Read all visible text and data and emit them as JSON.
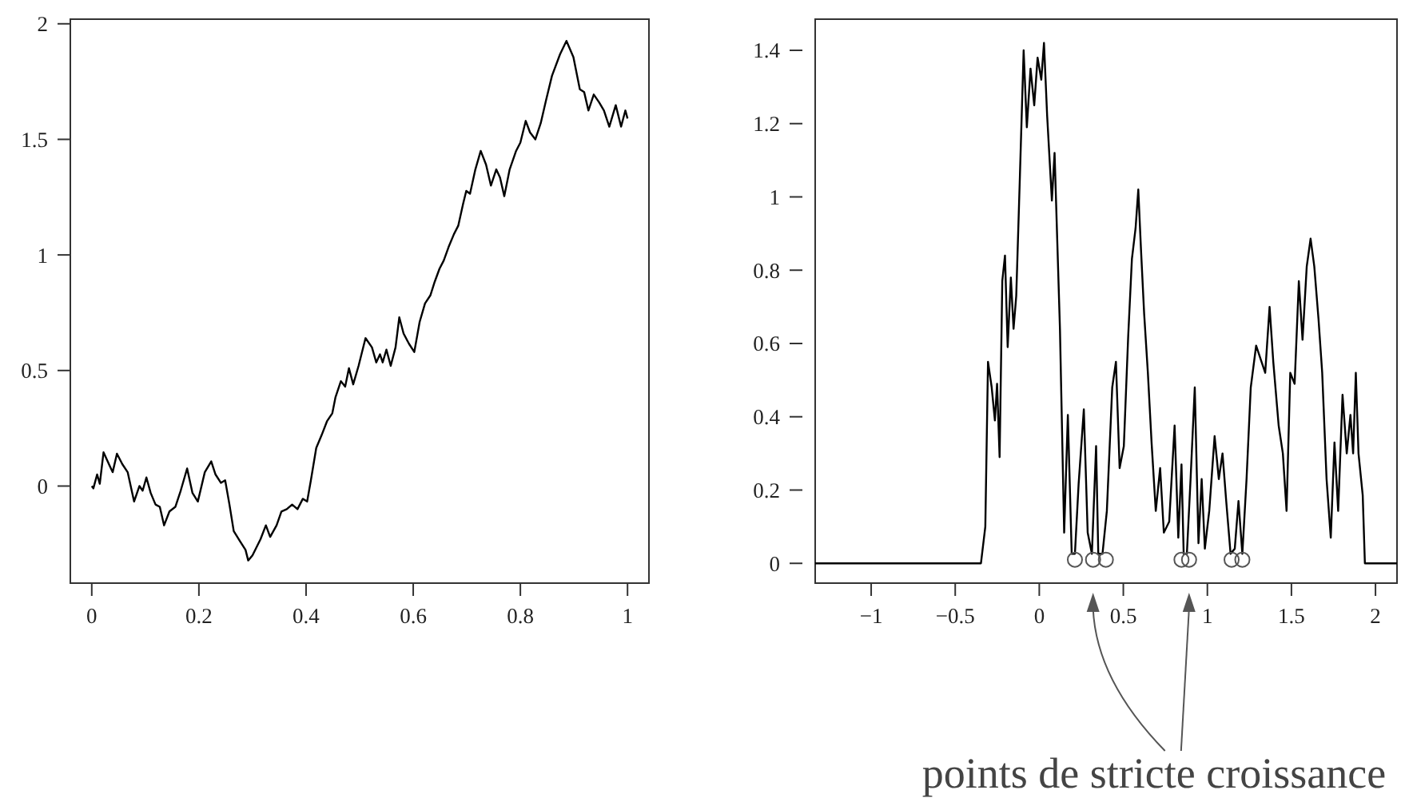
{
  "chart_data": [
    {
      "type": "line",
      "x": [
        0,
        0.003,
        0.01,
        0.015,
        0.022,
        0.032,
        0.039,
        0.047,
        0.057,
        0.067,
        0.079,
        0.089,
        0.095,
        0.102,
        0.11,
        0.119,
        0.127,
        0.135,
        0.145,
        0.156,
        0.166,
        0.178,
        0.188,
        0.198,
        0.211,
        0.223,
        0.231,
        0.241,
        0.249,
        0.257,
        0.265,
        0.277,
        0.287,
        0.292,
        0.3,
        0.315,
        0.325,
        0.333,
        0.345,
        0.354,
        0.364,
        0.374,
        0.384,
        0.394,
        0.402,
        0.409,
        0.419,
        0.429,
        0.439,
        0.449,
        0.455,
        0.465,
        0.473,
        0.48,
        0.488,
        0.498,
        0.511,
        0.523,
        0.531,
        0.538,
        0.543,
        0.55,
        0.558,
        0.567,
        0.574,
        0.582,
        0.592,
        0.602,
        0.612,
        0.622,
        0.632,
        0.64,
        0.649,
        0.657,
        0.666,
        0.676,
        0.684,
        0.693,
        0.699,
        0.706,
        0.716,
        0.726,
        0.736,
        0.745,
        0.755,
        0.762,
        0.77,
        0.78,
        0.792,
        0.8,
        0.81,
        0.818,
        0.828,
        0.838,
        0.848,
        0.859,
        0.874,
        0.886,
        0.899,
        0.911,
        0.919,
        0.927,
        0.937,
        0.947,
        0.956,
        0.966,
        0.978,
        0.988,
        0.996,
        1.0
      ],
      "series": [
        {
          "color": "#000000",
          "values": [
            0,
            -0.01,
            0.05,
            0.01,
            0.146,
            0.095,
            0.06,
            0.14,
            0.095,
            0.06,
            -0.067,
            0,
            -0.02,
            0.037,
            -0.03,
            -0.08,
            -0.09,
            -0.17,
            -0.11,
            -0.09,
            -0.02,
            0.076,
            -0.03,
            -0.067,
            0.06,
            0.107,
            0.05,
            0.014,
            0.025,
            -0.08,
            -0.195,
            -0.24,
            -0.276,
            -0.322,
            -0.3,
            -0.23,
            -0.17,
            -0.22,
            -0.17,
            -0.11,
            -0.1,
            -0.08,
            -0.1,
            -0.055,
            -0.067,
            0.025,
            0.165,
            0.22,
            0.28,
            0.315,
            0.385,
            0.454,
            0.43,
            0.51,
            0.44,
            0.52,
            0.64,
            0.6,
            0.535,
            0.57,
            0.535,
            0.59,
            0.52,
            0.6,
            0.73,
            0.66,
            0.616,
            0.58,
            0.71,
            0.79,
            0.825,
            0.883,
            0.94,
            0.976,
            1.034,
            1.09,
            1.126,
            1.22,
            1.277,
            1.265,
            1.37,
            1.45,
            1.39,
            1.3,
            1.37,
            1.335,
            1.254,
            1.37,
            1.45,
            1.486,
            1.58,
            1.53,
            1.5,
            1.57,
            1.67,
            1.775,
            1.868,
            1.926,
            1.856,
            1.717,
            1.705,
            1.625,
            1.694,
            1.66,
            1.625,
            1.555,
            1.648,
            1.555,
            1.625,
            1.59
          ]
        }
      ],
      "xlim": [
        -0.04,
        1.04
      ],
      "ylim": [
        -0.42,
        2.02
      ],
      "xticks": [
        0,
        0.2,
        0.4,
        0.6,
        0.8,
        1
      ],
      "yticks": [
        0,
        0.5,
        1,
        1.5,
        2
      ]
    },
    {
      "type": "line",
      "series": [
        {
          "type": "line",
          "color": "#000000",
          "x": [
            -1.333,
            -0.347,
            -0.321,
            -0.305,
            -0.283,
            -0.264,
            -0.251,
            -0.236,
            -0.22,
            -0.204,
            -0.188,
            -0.169,
            -0.153,
            -0.137,
            -0.115,
            -0.093,
            -0.074,
            -0.052,
            -0.03,
            -0.01,
            0.012,
            0.028,
            0.047,
            0.075,
            0.091,
            0.123,
            0.148,
            0.17,
            0.193,
            0.212,
            0.234,
            0.265,
            0.288,
            0.313,
            0.338,
            0.351,
            0.376,
            0.402,
            0.434,
            0.456,
            0.478,
            0.503,
            0.529,
            0.551,
            0.573,
            0.589,
            0.605,
            0.624,
            0.646,
            0.668,
            0.693,
            0.719,
            0.741,
            0.773,
            0.805,
            0.827,
            0.846,
            0.859,
            0.878,
            0.9,
            0.925,
            0.947,
            0.966,
            0.985,
            1.011,
            1.043,
            1.068,
            1.09,
            1.112,
            1.138,
            1.163,
            1.185,
            1.208,
            1.233,
            1.258,
            1.29,
            1.322,
            1.344,
            1.37,
            1.392,
            1.424,
            1.449,
            1.471,
            1.493,
            1.519,
            1.544,
            1.566,
            1.591,
            1.614,
            1.636,
            1.661,
            1.683,
            1.709,
            1.734,
            1.756,
            1.778,
            1.804,
            1.829,
            1.851,
            1.867,
            1.883,
            1.899,
            1.924,
            1.937,
            2.128
          ],
          "values": [
            0,
            0,
            0.1,
            0.55,
            0.48,
            0.39,
            0.49,
            0.29,
            0.77,
            0.84,
            0.59,
            0.78,
            0.64,
            0.73,
            1.06,
            1.4,
            1.19,
            1.35,
            1.25,
            1.38,
            1.32,
            1.42,
            1.22,
            0.99,
            1.12,
            0.64,
            0.084,
            0.405,
            0.026,
            0.026,
            0.216,
            0.42,
            0.084,
            0.026,
            0.32,
            0.026,
            0.026,
            0.143,
            0.48,
            0.55,
            0.26,
            0.32,
            0.62,
            0.83,
            0.915,
            1.02,
            0.857,
            0.68,
            0.52,
            0.33,
            0.143,
            0.26,
            0.084,
            0.114,
            0.376,
            0.07,
            0.27,
            0.026,
            0.026,
            0.23,
            0.48,
            0.055,
            0.23,
            0.04,
            0.143,
            0.347,
            0.23,
            0.3,
            0.17,
            0.026,
            0.04,
            0.17,
            0.026,
            0.23,
            0.48,
            0.594,
            0.55,
            0.52,
            0.7,
            0.55,
            0.376,
            0.3,
            0.143,
            0.52,
            0.49,
            0.77,
            0.61,
            0.81,
            0.886,
            0.81,
            0.667,
            0.52,
            0.23,
            0.07,
            0.33,
            0.143,
            0.46,
            0.3,
            0.405,
            0.3,
            0.52,
            0.3,
            0.186,
            0,
            0
          ]
        },
        {
          "type": "scatter",
          "color": "#555555",
          "marker": "circle",
          "x": [
            0.212,
            0.32,
            0.396,
            0.846,
            0.891,
            1.144,
            1.208
          ],
          "values": [
            0.01,
            0.01,
            0.01,
            0.01,
            0.01,
            0.01,
            0.01
          ]
        }
      ],
      "xlim": [
        -1.333,
        2.128
      ],
      "ylim": [
        -0.054,
        1.485
      ],
      "xticks": [
        {
          "value": -1,
          "label": "−1"
        },
        {
          "value": -0.5,
          "label": "−0.5"
        },
        0,
        0.5,
        1,
        1.5,
        2
      ],
      "yticks": [
        0,
        0.2,
        0.4,
        0.6,
        0.8,
        1,
        1.2,
        1.4
      ],
      "annotations": [
        "points de stricte croissance"
      ]
    }
  ]
}
